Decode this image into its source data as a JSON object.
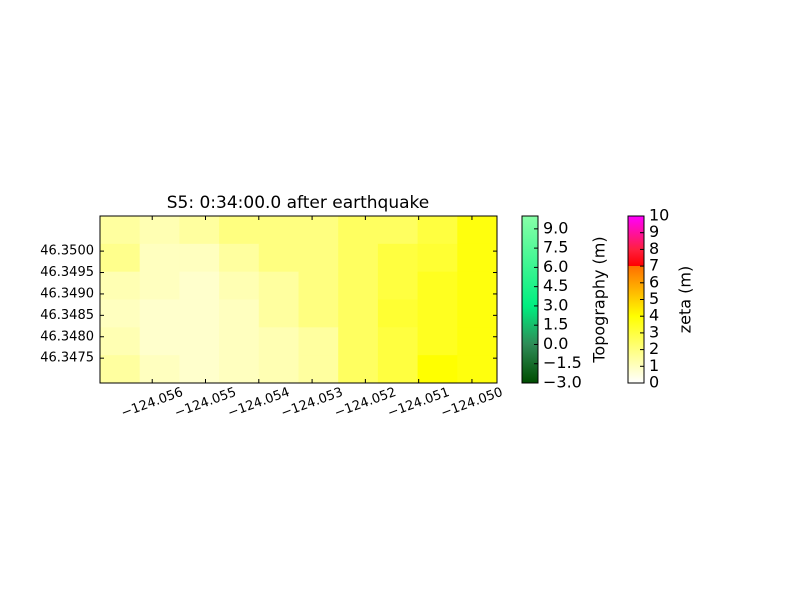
{
  "chart_data": {
    "type": "heatmap",
    "title": "S5: 0:34:00.0 after earthquake",
    "xlim": [
      -124.05698,
      -124.04953
    ],
    "ylim": [
      46.34692,
      46.35082
    ],
    "xticks": [
      {
        "value": -124.056,
        "label": "−124.056"
      },
      {
        "value": -124.055,
        "label": "−124.055"
      },
      {
        "value": -124.054,
        "label": "−124.054"
      },
      {
        "value": -124.053,
        "label": "−124.053"
      },
      {
        "value": -124.052,
        "label": "−124.052"
      },
      {
        "value": -124.051,
        "label": "−124.051"
      },
      {
        "value": -124.05,
        "label": "−124.050"
      }
    ],
    "yticks": [
      46.3475,
      {
        "value": 46.348,
        "label": "46.3480"
      },
      46.3485,
      {
        "value": 46.349,
        "label": "46.3490"
      },
      46.3495,
      {
        "value": 46.35,
        "label": "46.3500"
      }
    ],
    "z": [
      [
        1.5,
        1.2,
        1.5,
        2,
        2,
        2,
        2.5,
        2.5,
        3,
        3.8
      ],
      [
        1.8,
        1,
        1,
        1.5,
        2,
        2,
        2.5,
        3,
        3.2,
        3.8
      ],
      [
        1.2,
        1,
        0.8,
        1.2,
        1.5,
        2,
        2.5,
        3,
        3.5,
        3.8
      ],
      [
        1,
        0.8,
        0.8,
        1,
        1.5,
        2,
        2.5,
        3.2,
        3.5,
        3.8
      ],
      [
        1.2,
        0.8,
        0.8,
        1,
        1.2,
        1.5,
        2.5,
        3,
        3.5,
        3.8
      ],
      [
        1.5,
        1,
        0.8,
        1,
        1.2,
        1.5,
        2.5,
        3,
        4,
        3.8
      ]
    ],
    "colorbars": [
      {
        "label": "Topography (m)",
        "lim": [
          -3,
          10
        ],
        "ticks": [
          {
            "value": -3,
            "label": "−3.0"
          },
          {
            "value": -1.5,
            "label": "−1.5"
          },
          {
            "value": 0,
            "label": "0.0"
          },
          1.5,
          {
            "value": 3,
            "label": "3.0"
          },
          4.5,
          {
            "value": 6,
            "label": "6.0"
          },
          7.5,
          {
            "value": 9,
            "label": "9.0"
          }
        ],
        "colors": [
          [
            -3,
            "#004d00"
          ],
          [
            0,
            "#2e8b57"
          ],
          [
            3,
            "#00ee80"
          ],
          [
            10,
            "#88ffa8"
          ]
        ]
      },
      {
        "label": "zeta (m)",
        "lim": [
          0,
          10
        ],
        "ticks": [
          0,
          1,
          2,
          3,
          4,
          5,
          6,
          7,
          8,
          9,
          10
        ],
        "colors": [
          [
            0,
            "#ffffff"
          ],
          [
            4,
            "#ffff00"
          ],
          [
            6,
            "#ffa000"
          ],
          [
            7,
            "#ff7000"
          ],
          [
            7,
            "#ff0000"
          ],
          [
            8,
            "#ff2040"
          ],
          [
            10,
            "#ff00ff"
          ]
        ]
      }
    ]
  }
}
